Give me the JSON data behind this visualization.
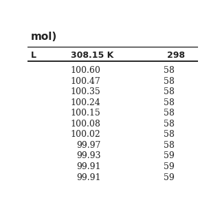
{
  "title_partial": "mol)",
  "col_header_1": "308.15 K",
  "col_header_2": "298",
  "col_header_left": "L",
  "col1_values": [
    "100.60",
    "100.47",
    "100.35",
    "100.24",
    "100.15",
    "100.08",
    "100.02",
    "99.97",
    "99.93",
    "99.91",
    "99.91"
  ],
  "col2_values": [
    "58",
    "58",
    "58",
    "58",
    "58",
    "58",
    "58",
    "58",
    "59",
    "59",
    "59"
  ],
  "background_color": "#ffffff",
  "text_color": "#222222",
  "header_fontsize": 9,
  "data_fontsize": 9,
  "title_fontsize": 11
}
